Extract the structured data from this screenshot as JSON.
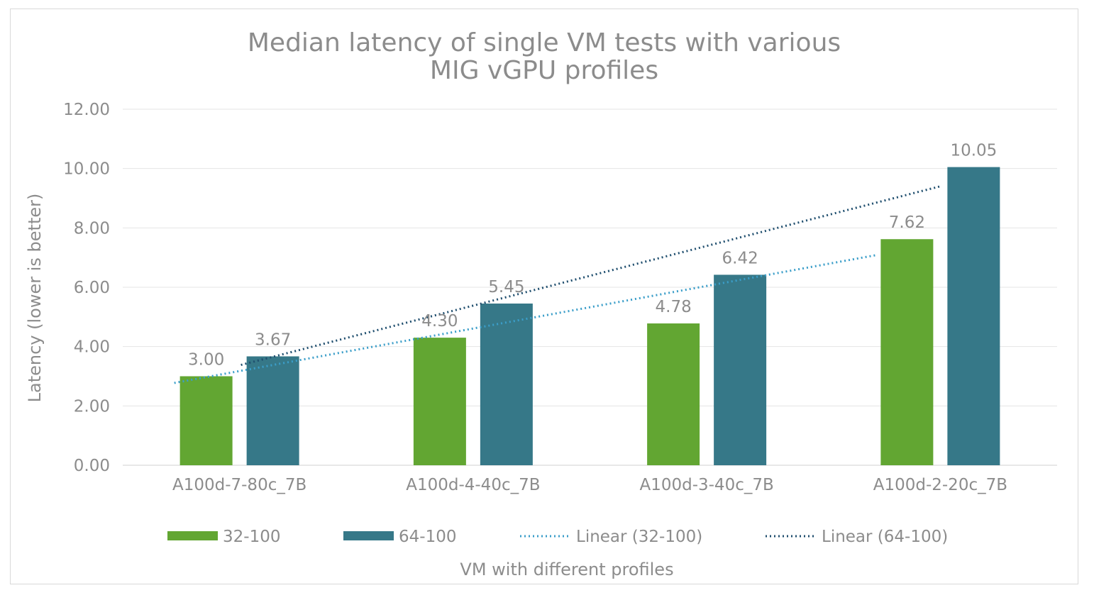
{
  "chart_data": {
    "type": "bar",
    "title_lines": [
      "Median latency of single VM tests with various",
      "MIG vGPU profiles"
    ],
    "xlabel": "VM with different profiles",
    "ylabel": "Latency (lower is better)",
    "categories": [
      "A100d-7-80c_7B",
      "A100d-4-40c_7B",
      "A100d-3-40c_7B",
      "A100d-2-20c_7B"
    ],
    "ylim": [
      0,
      12
    ],
    "yticks": [
      "0.00",
      "2.00",
      "4.00",
      "6.00",
      "8.00",
      "10.00",
      "12.00"
    ],
    "grid": true,
    "legend_position": "bottom",
    "series": [
      {
        "name": "32-100",
        "values": [
          3.0,
          4.3,
          4.78,
          7.62
        ],
        "labels": [
          "3.00",
          "4.30",
          "4.78",
          "7.62"
        ],
        "color": "#62a632"
      },
      {
        "name": "64-100",
        "values": [
          3.67,
          5.45,
          6.42,
          10.05
        ],
        "labels": [
          "3.67",
          "5.45",
          "6.42",
          "10.05"
        ],
        "color": "#367888"
      }
    ],
    "trendlines": [
      {
        "name": "Linear (32-100)",
        "type": "linear",
        "series": "32-100",
        "color": "#3b9ec9"
      },
      {
        "name": "Linear (64-100)",
        "type": "linear",
        "series": "64-100",
        "color": "#1f4e6e"
      }
    ]
  }
}
